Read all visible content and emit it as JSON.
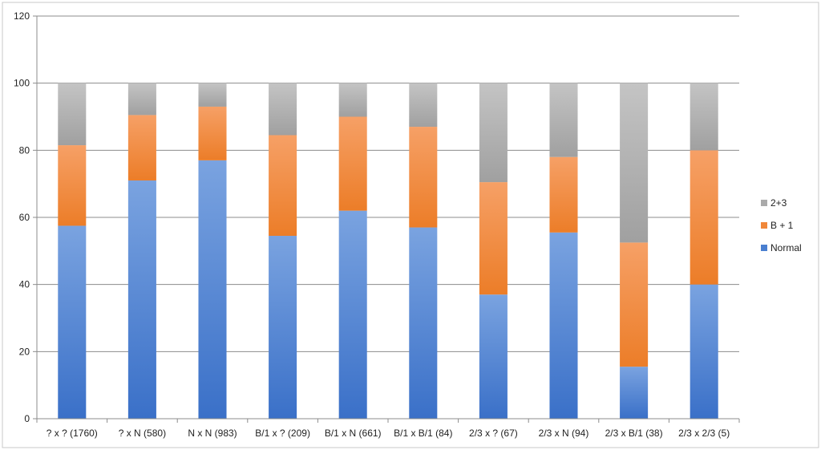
{
  "chart_data": {
    "type": "bar",
    "stacked": true,
    "title": "",
    "xlabel": "",
    "ylabel": "",
    "ylim": [
      0,
      120
    ],
    "yticks": [
      0,
      20,
      40,
      60,
      80,
      100,
      120
    ],
    "grid": true,
    "legend_position": "right",
    "categories": [
      "? x ? (1760)",
      "? x N (580)",
      "N x N (983)",
      "B/1 x ? (209)",
      "B/1 x N (661)",
      "B/1 x B/1 (84)",
      "2/3 x ? (67)",
      "2/3 x N (94)",
      "2/3 x B/1 (38)",
      "2/3 x 2/3 (5)"
    ],
    "series": [
      {
        "name": "Normal",
        "color": "#4a7fd0",
        "values": [
          57.5,
          71,
          77,
          54.5,
          62,
          57,
          37,
          55.5,
          15.5,
          40
        ]
      },
      {
        "name": "B + 1",
        "color": "#f0873a",
        "values": [
          24,
          19.5,
          16,
          30,
          28,
          30,
          33.5,
          22.5,
          37,
          40
        ]
      },
      {
        "name": "2+3",
        "color": "#aaaaaa",
        "values": [
          18.5,
          9.5,
          7,
          15.5,
          10,
          13,
          29.5,
          22,
          47.5,
          20
        ]
      }
    ]
  }
}
